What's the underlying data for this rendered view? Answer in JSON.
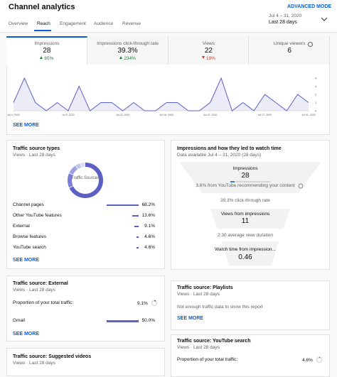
{
  "header": {
    "title": "Channel analytics",
    "advanced_mode": "ADVANCED MODE",
    "date_range": "Jul 4 – 31, 2020",
    "period": "Last 28 days"
  },
  "tabs": [
    "Overview",
    "Reach",
    "Engagement",
    "Audience",
    "Revenue"
  ],
  "metrics": [
    {
      "label": "Impressions",
      "value": "28",
      "change": "65%"
    },
    {
      "label": "Impressions click-through rate",
      "value": "39.3%",
      "change": "234%"
    },
    {
      "label": "Views",
      "value": "22",
      "change": "19%"
    },
    {
      "label": "Unique viewers",
      "value": "6"
    }
  ],
  "overview_chart": {
    "type": "line",
    "color": "#5c5fc4",
    "x": [
      4,
      5,
      6,
      7,
      8,
      9,
      10,
      11,
      12,
      13,
      14,
      15,
      16,
      17,
      18,
      19,
      20,
      21,
      22,
      23,
      24,
      25,
      26,
      27,
      28,
      29,
      30,
      31
    ],
    "values": [
      1,
      4,
      1,
      0,
      1,
      0,
      3,
      0,
      1,
      1,
      0,
      1,
      0,
      0,
      1,
      1,
      0,
      0,
      1,
      4,
      0,
      1,
      0,
      2,
      1,
      0,
      2,
      1
    ],
    "xlim": [
      4,
      31
    ],
    "ylim": [
      0,
      4
    ],
    "yticks": [
      0,
      1,
      2,
      3,
      4
    ],
    "xticks": [
      {
        "value": 4,
        "label": "Jul 4, 2020"
      },
      {
        "value": 9,
        "label": "Jul 9, 2020"
      },
      {
        "value": 14,
        "label": "Jul 14, 2020"
      },
      {
        "value": 18,
        "label": "Jul 18, 2020"
      },
      {
        "value": 22,
        "label": "Jul 22, 2020"
      },
      {
        "value": 27,
        "label": "Jul 27, 2020"
      },
      {
        "value": 31,
        "label": "Jul 31, 2020"
      }
    ],
    "see_more": "SEE MORE"
  },
  "traffic_types": {
    "title": "Traffic source types",
    "subtitle": "Views · Last 28 days",
    "donut_label": "Traffic Sources",
    "color": "#5c5fc4",
    "sources": [
      {
        "name": "Channel pages",
        "value": 68.2,
        "label": "68.2%"
      },
      {
        "name": "Other YouTube features",
        "value": 13.6,
        "label": "13.6%"
      },
      {
        "name": "External",
        "value": 9.1,
        "label": "9.1%"
      },
      {
        "name": "Browse features",
        "value": 4.6,
        "label": "4.6%"
      },
      {
        "name": "YouTube search",
        "value": 4.6,
        "label": "4.6%"
      }
    ],
    "see_more": "SEE MORE"
  },
  "funnel": {
    "title": "Impressions and how they led to watch time",
    "subtitle": "Data available Jul 4 – 31, 2020 (28 days)",
    "impressions_label": "Impressions",
    "impressions": "28",
    "recommend": "3.6% from YouTube recommending your content",
    "ctr": "39.3% click-through rate",
    "views_label": "Views from impressions",
    "views": "11",
    "duration": "2:30 average view duration",
    "watch_label": "Watch time from impression...",
    "watch": "0.46"
  },
  "external": {
    "title": "Traffic source: External",
    "subtitle": "Views · Last 28 days",
    "proportion_label": "Proportion of your total traffic:",
    "proportion": 9.1,
    "proportion_text": "9.1%",
    "rows": [
      {
        "name": "Gmail",
        "value": 50.0,
        "label": "50.0%"
      }
    ],
    "see_more": "SEE MORE"
  },
  "playlists": {
    "title": "Traffic source: Playlists",
    "subtitle": "Views · Last 28 days",
    "message": "Not enough traffic data to show this report",
    "see_more": "SEE MORE"
  },
  "suggested": {
    "title": "Traffic source: Suggested videos",
    "subtitle": "Views · Last 28 days"
  },
  "search": {
    "title": "Traffic source: YouTube search",
    "subtitle": "Views · Last 28 days",
    "proportion_label": "Proportion of your total traffic:",
    "proportion": 4.6,
    "proportion_text": "4.6%"
  }
}
